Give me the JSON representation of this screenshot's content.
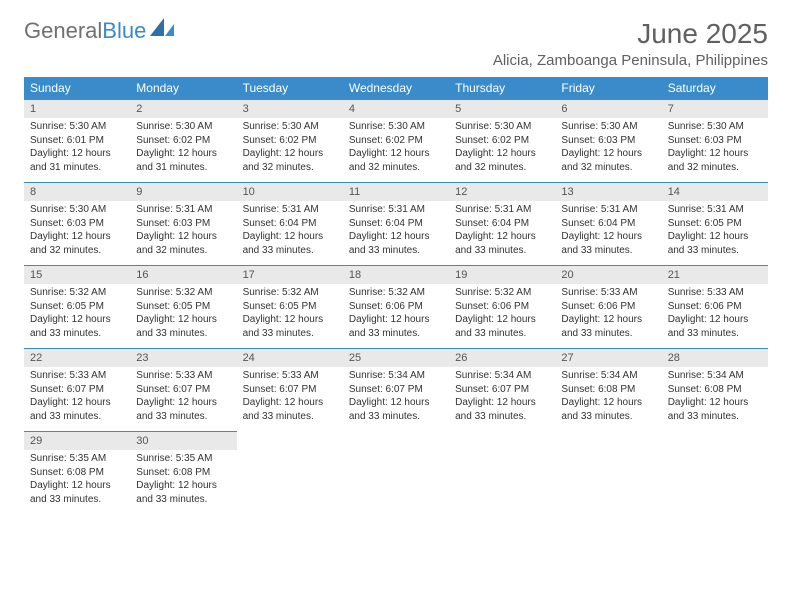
{
  "logo": {
    "text_gray": "General",
    "text_blue": "Blue"
  },
  "header": {
    "month_title": "June 2025",
    "location": "Alicia, Zamboanga Peninsula, Philippines"
  },
  "colors": {
    "header_bg": "#3a8bc9",
    "header_text": "#ffffff",
    "daynum_bg": "#e9e9e9",
    "daynum_border": "#3a8bc9",
    "body_text": "#333333",
    "logo_gray": "#707070",
    "logo_blue": "#3a8bc9",
    "title_color": "#606060"
  },
  "day_names": [
    "Sunday",
    "Monday",
    "Tuesday",
    "Wednesday",
    "Thursday",
    "Friday",
    "Saturday"
  ],
  "weeks": [
    {
      "nums": [
        "1",
        "2",
        "3",
        "4",
        "5",
        "6",
        "7"
      ],
      "cells": [
        {
          "sunrise": "Sunrise: 5:30 AM",
          "sunset": "Sunset: 6:01 PM",
          "day1": "Daylight: 12 hours",
          "day2": "and 31 minutes."
        },
        {
          "sunrise": "Sunrise: 5:30 AM",
          "sunset": "Sunset: 6:02 PM",
          "day1": "Daylight: 12 hours",
          "day2": "and 31 minutes."
        },
        {
          "sunrise": "Sunrise: 5:30 AM",
          "sunset": "Sunset: 6:02 PM",
          "day1": "Daylight: 12 hours",
          "day2": "and 32 minutes."
        },
        {
          "sunrise": "Sunrise: 5:30 AM",
          "sunset": "Sunset: 6:02 PM",
          "day1": "Daylight: 12 hours",
          "day2": "and 32 minutes."
        },
        {
          "sunrise": "Sunrise: 5:30 AM",
          "sunset": "Sunset: 6:02 PM",
          "day1": "Daylight: 12 hours",
          "day2": "and 32 minutes."
        },
        {
          "sunrise": "Sunrise: 5:30 AM",
          "sunset": "Sunset: 6:03 PM",
          "day1": "Daylight: 12 hours",
          "day2": "and 32 minutes."
        },
        {
          "sunrise": "Sunrise: 5:30 AM",
          "sunset": "Sunset: 6:03 PM",
          "day1": "Daylight: 12 hours",
          "day2": "and 32 minutes."
        }
      ]
    },
    {
      "nums": [
        "8",
        "9",
        "10",
        "11",
        "12",
        "13",
        "14"
      ],
      "cells": [
        {
          "sunrise": "Sunrise: 5:30 AM",
          "sunset": "Sunset: 6:03 PM",
          "day1": "Daylight: 12 hours",
          "day2": "and 32 minutes."
        },
        {
          "sunrise": "Sunrise: 5:31 AM",
          "sunset": "Sunset: 6:03 PM",
          "day1": "Daylight: 12 hours",
          "day2": "and 32 minutes."
        },
        {
          "sunrise": "Sunrise: 5:31 AM",
          "sunset": "Sunset: 6:04 PM",
          "day1": "Daylight: 12 hours",
          "day2": "and 33 minutes."
        },
        {
          "sunrise": "Sunrise: 5:31 AM",
          "sunset": "Sunset: 6:04 PM",
          "day1": "Daylight: 12 hours",
          "day2": "and 33 minutes."
        },
        {
          "sunrise": "Sunrise: 5:31 AM",
          "sunset": "Sunset: 6:04 PM",
          "day1": "Daylight: 12 hours",
          "day2": "and 33 minutes."
        },
        {
          "sunrise": "Sunrise: 5:31 AM",
          "sunset": "Sunset: 6:04 PM",
          "day1": "Daylight: 12 hours",
          "day2": "and 33 minutes."
        },
        {
          "sunrise": "Sunrise: 5:31 AM",
          "sunset": "Sunset: 6:05 PM",
          "day1": "Daylight: 12 hours",
          "day2": "and 33 minutes."
        }
      ]
    },
    {
      "nums": [
        "15",
        "16",
        "17",
        "18",
        "19",
        "20",
        "21"
      ],
      "cells": [
        {
          "sunrise": "Sunrise: 5:32 AM",
          "sunset": "Sunset: 6:05 PM",
          "day1": "Daylight: 12 hours",
          "day2": "and 33 minutes."
        },
        {
          "sunrise": "Sunrise: 5:32 AM",
          "sunset": "Sunset: 6:05 PM",
          "day1": "Daylight: 12 hours",
          "day2": "and 33 minutes."
        },
        {
          "sunrise": "Sunrise: 5:32 AM",
          "sunset": "Sunset: 6:05 PM",
          "day1": "Daylight: 12 hours",
          "day2": "and 33 minutes."
        },
        {
          "sunrise": "Sunrise: 5:32 AM",
          "sunset": "Sunset: 6:06 PM",
          "day1": "Daylight: 12 hours",
          "day2": "and 33 minutes."
        },
        {
          "sunrise": "Sunrise: 5:32 AM",
          "sunset": "Sunset: 6:06 PM",
          "day1": "Daylight: 12 hours",
          "day2": "and 33 minutes."
        },
        {
          "sunrise": "Sunrise: 5:33 AM",
          "sunset": "Sunset: 6:06 PM",
          "day1": "Daylight: 12 hours",
          "day2": "and 33 minutes."
        },
        {
          "sunrise": "Sunrise: 5:33 AM",
          "sunset": "Sunset: 6:06 PM",
          "day1": "Daylight: 12 hours",
          "day2": "and 33 minutes."
        }
      ]
    },
    {
      "nums": [
        "22",
        "23",
        "24",
        "25",
        "26",
        "27",
        "28"
      ],
      "cells": [
        {
          "sunrise": "Sunrise: 5:33 AM",
          "sunset": "Sunset: 6:07 PM",
          "day1": "Daylight: 12 hours",
          "day2": "and 33 minutes."
        },
        {
          "sunrise": "Sunrise: 5:33 AM",
          "sunset": "Sunset: 6:07 PM",
          "day1": "Daylight: 12 hours",
          "day2": "and 33 minutes."
        },
        {
          "sunrise": "Sunrise: 5:33 AM",
          "sunset": "Sunset: 6:07 PM",
          "day1": "Daylight: 12 hours",
          "day2": "and 33 minutes."
        },
        {
          "sunrise": "Sunrise: 5:34 AM",
          "sunset": "Sunset: 6:07 PM",
          "day1": "Daylight: 12 hours",
          "day2": "and 33 minutes."
        },
        {
          "sunrise": "Sunrise: 5:34 AM",
          "sunset": "Sunset: 6:07 PM",
          "day1": "Daylight: 12 hours",
          "day2": "and 33 minutes."
        },
        {
          "sunrise": "Sunrise: 5:34 AM",
          "sunset": "Sunset: 6:08 PM",
          "day1": "Daylight: 12 hours",
          "day2": "and 33 minutes."
        },
        {
          "sunrise": "Sunrise: 5:34 AM",
          "sunset": "Sunset: 6:08 PM",
          "day1": "Daylight: 12 hours",
          "day2": "and 33 minutes."
        }
      ]
    },
    {
      "nums": [
        "29",
        "30",
        "",
        "",
        "",
        "",
        ""
      ],
      "cells": [
        {
          "sunrise": "Sunrise: 5:35 AM",
          "sunset": "Sunset: 6:08 PM",
          "day1": "Daylight: 12 hours",
          "day2": "and 33 minutes."
        },
        {
          "sunrise": "Sunrise: 5:35 AM",
          "sunset": "Sunset: 6:08 PM",
          "day1": "Daylight: 12 hours",
          "day2": "and 33 minutes."
        },
        null,
        null,
        null,
        null,
        null
      ]
    }
  ]
}
